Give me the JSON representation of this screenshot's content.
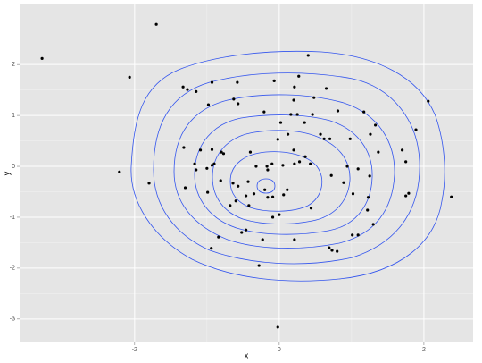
{
  "chart_data": {
    "type": "scatter",
    "x_label": "x",
    "y_label": "y",
    "xlim": [
      -3.59,
      2.68
    ],
    "ylim": [
      -3.46,
      3.18
    ],
    "xticks": [
      -2,
      0,
      2
    ],
    "yticks": [
      -3,
      -2,
      -1,
      0,
      1,
      2
    ],
    "grid": true,
    "color": "#000000",
    "x": [
      -3.28,
      -1.7,
      -2.07,
      -2.21,
      -1.8,
      0.4,
      -1.33,
      -1.27,
      -1.15,
      -0.93,
      -0.58,
      -0.07,
      -0.98,
      -0.63,
      -0.57,
      0.27,
      0.65,
      0.21,
      0.48,
      1.17,
      1.33,
      2.06,
      1.89,
      0.2,
      0.16,
      0.25,
      0.46,
      0.81,
      -0.21,
      0.02,
      0.35,
      0.57,
      0.7,
      0.62,
      0.98,
      1.26,
      1.7,
      1.75,
      -1.09,
      -1.32,
      -0.93,
      -0.8,
      -0.77,
      -0.4,
      -0.02,
      0.12,
      0.2,
      0.36,
      -1.0,
      -0.9,
      -0.93,
      -1.15,
      -1.17,
      -1.3,
      -0.99,
      -0.81,
      -0.64,
      -0.57,
      -0.43,
      -0.32,
      -0.17,
      -0.1,
      -0.16,
      0.05,
      0.21,
      0.28,
      0.43,
      -0.2,
      -0.16,
      -0.09,
      0.06,
      0.11,
      -0.46,
      -0.35,
      -0.6,
      -0.68,
      -0.42,
      0.0,
      -0.09,
      0.44,
      0.72,
      0.89,
      0.94,
      1.02,
      1.09,
      1.23,
      1.25,
      1.22,
      1.75,
      1.79,
      2.38,
      1.3,
      1.01,
      1.09,
      0.73,
      0.8,
      0.69,
      0.21,
      -0.23,
      -0.46,
      -0.52,
      -0.84,
      -0.94,
      -0.28,
      -0.02,
      1.37
    ],
    "y": [
      2.12,
      2.79,
      1.75,
      -0.11,
      -0.33,
      2.18,
      1.56,
      1.51,
      1.47,
      1.65,
      1.65,
      1.68,
      1.21,
      1.32,
      1.23,
      1.77,
      1.53,
      1.56,
      1.35,
      1.07,
      0.81,
      1.28,
      0.72,
      1.3,
      1.02,
      1.02,
      1.02,
      1.09,
      1.07,
      0.86,
      0.86,
      0.63,
      0.54,
      0.54,
      0.54,
      0.63,
      0.32,
      0.09,
      0.32,
      0.37,
      0.33,
      0.28,
      0.25,
      0.28,
      0.53,
      0.63,
      0.32,
      0.19,
      -0.04,
      0.05,
      0.02,
      -0.07,
      0.05,
      -0.42,
      -0.51,
      -0.28,
      -0.33,
      -0.39,
      -0.3,
      0.0,
      0.0,
      0.05,
      -0.07,
      0.02,
      0.05,
      0.09,
      0.05,
      -0.46,
      -0.61,
      -0.6,
      -0.56,
      -0.46,
      -0.58,
      -0.54,
      -0.68,
      -0.77,
      -0.77,
      -0.95,
      -1.0,
      -0.82,
      -0.18,
      -0.32,
      0.0,
      -0.54,
      -0.05,
      -0.61,
      -0.19,
      -0.86,
      -0.58,
      -0.53,
      -0.6,
      -1.14,
      -1.35,
      -1.35,
      -1.65,
      -1.67,
      -1.6,
      -1.44,
      -1.44,
      -1.25,
      -1.3,
      -1.39,
      -1.61,
      -1.95,
      -3.16,
      0.28
    ]
  }
}
